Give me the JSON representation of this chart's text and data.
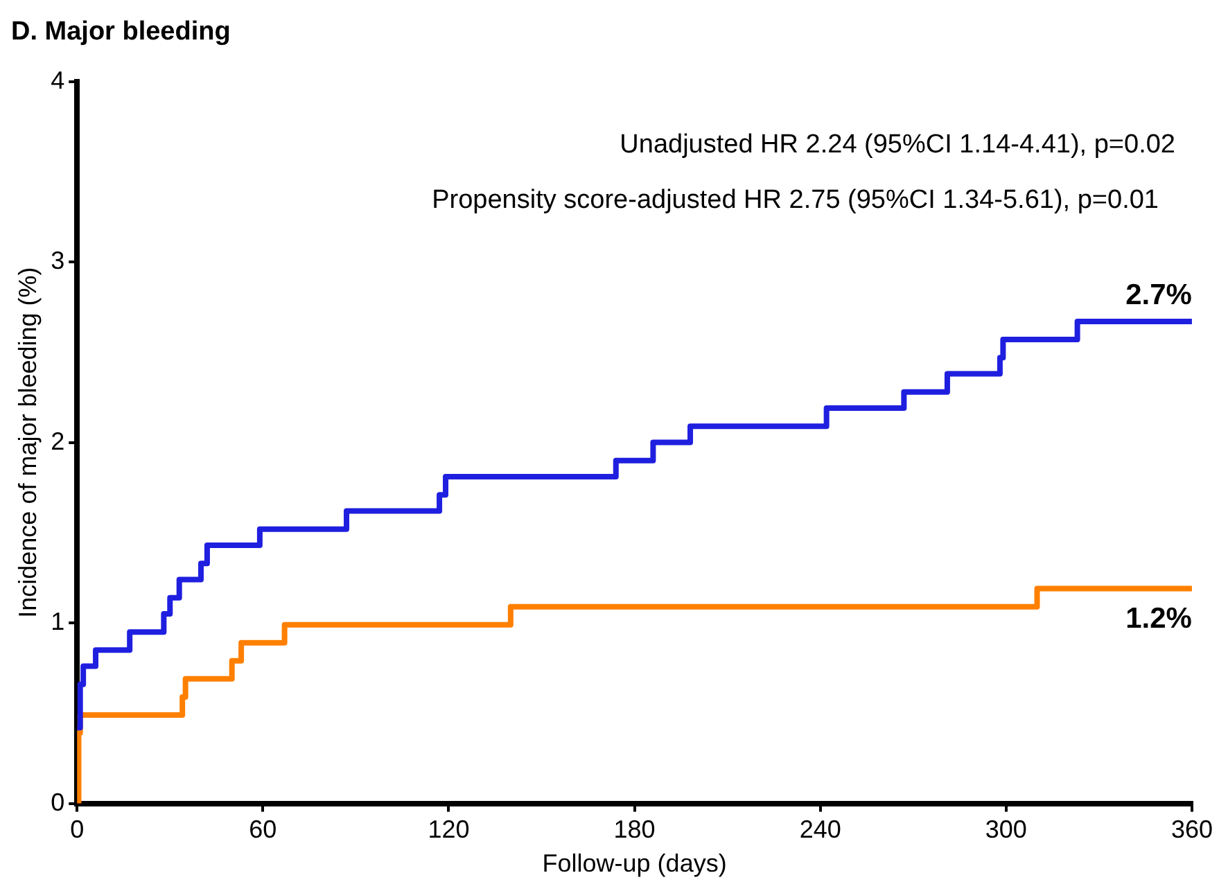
{
  "chart_data": {
    "type": "step",
    "title": "D. Major bleeding",
    "xlabel": "Follow-up (days)",
    "ylabel": "Incidence of major bleeding (%)",
    "xlim": [
      0,
      360
    ],
    "xticks": [
      0,
      60,
      120,
      180,
      240,
      300,
      360
    ],
    "ylim": [
      0,
      4
    ],
    "yticks": [
      0,
      1,
      2,
      3,
      4
    ],
    "grid": false,
    "legend": false,
    "marker": "none",
    "line_style": "solid",
    "series": [
      {
        "color": "#1f1fe0",
        "x": [
          0,
          1,
          2,
          6,
          17,
          28,
          30,
          33,
          40,
          42,
          59,
          87,
          117,
          119,
          174,
          186,
          198,
          242,
          267,
          281,
          298,
          299,
          323,
          360
        ],
        "values": [
          0.42,
          0.66,
          0.76,
          0.85,
          0.95,
          1.05,
          1.14,
          1.24,
          1.33,
          1.43,
          1.52,
          1.62,
          1.71,
          1.81,
          1.9,
          2.0,
          2.09,
          2.19,
          2.28,
          2.38,
          2.47,
          2.57,
          2.67,
          2.67
        ]
      },
      {
        "color": "#ff7f00",
        "x": [
          0,
          0.5,
          1,
          34,
          35,
          50,
          53,
          67,
          140,
          310,
          360
        ],
        "values": [
          0,
          0.39,
          0.49,
          0.59,
          0.69,
          0.79,
          0.89,
          0.99,
          1.09,
          1.19,
          1.19
        ]
      }
    ],
    "annotations": [
      "Unadjusted HR 2.24 (95%CI 1.14-4.41), p=0.02",
      "Propensity score-adjusted HR 2.75 (95%CI 1.34-5.61), p=0.01",
      {
        "text": "2.7%",
        "x": 360,
        "y": 2.67
      },
      {
        "text": "1.2%",
        "x": 360,
        "y": 1.19
      }
    ]
  }
}
